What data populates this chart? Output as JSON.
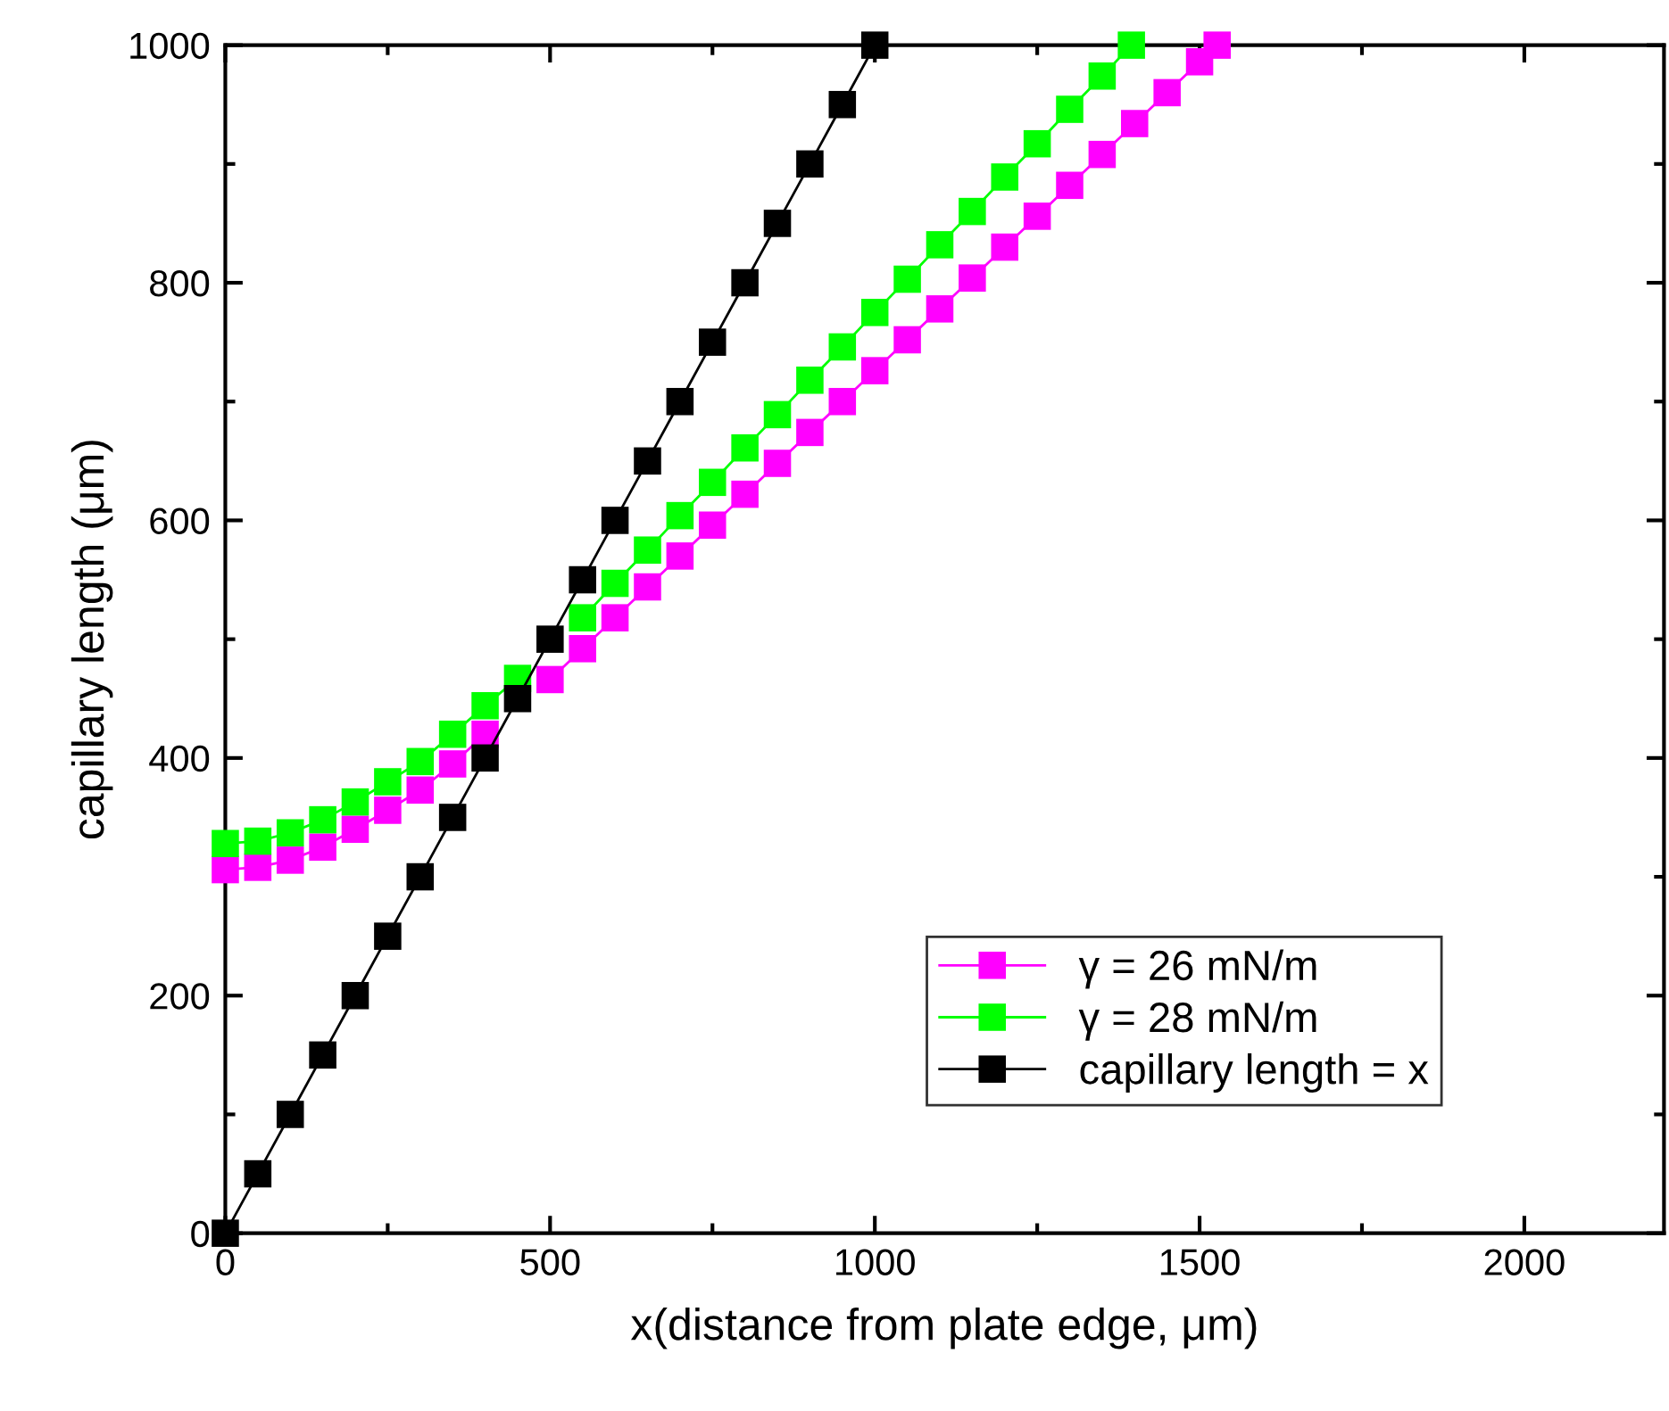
{
  "chart_data": {
    "type": "line",
    "xlabel": "x(distance from plate edge, μm)",
    "ylabel": "capillary length (μm)",
    "xlim": [
      0,
      2215
    ],
    "ylim": [
      0,
      1000
    ],
    "xticks": [
      0,
      500,
      1000,
      1500,
      2000
    ],
    "yticks": [
      0,
      200,
      400,
      600,
      800,
      1000
    ],
    "grid": false,
    "legend": "bottom right",
    "marker": "square",
    "line_style": "solid",
    "series": [
      {
        "name": "γ = 26 mN/m",
        "color": "#ff00ff",
        "x": [
          0,
          50,
          100,
          150,
          200,
          250,
          300,
          350,
          400,
          450,
          500,
          550,
          600,
          650,
          700,
          750,
          800,
          850,
          900,
          950,
          1000,
          1050,
          1100,
          1150,
          1200,
          1250,
          1300,
          1350,
          1400,
          1450,
          1500,
          1527
        ],
        "values": [
          306,
          308,
          314,
          325,
          340,
          356,
          373,
          395,
          420,
          null,
          466,
          492,
          518,
          544,
          570,
          596,
          622,
          648,
          674,
          700,
          726,
          752,
          778,
          804,
          830,
          856,
          882,
          908,
          934,
          960,
          986,
          1000
        ]
      },
      {
        "name": "γ = 28 mN/m",
        "color": "#00ff00",
        "x": [
          0,
          50,
          100,
          150,
          200,
          250,
          300,
          350,
          400,
          450,
          500,
          550,
          600,
          650,
          700,
          750,
          800,
          850,
          900,
          950,
          1000,
          1050,
          1100,
          1150,
          1200,
          1250,
          1300,
          1350,
          1395
        ],
        "values": [
          328,
          330,
          337,
          348,
          363,
          380,
          397,
          420,
          444,
          467,
          null,
          518,
          547,
          575,
          604,
          632,
          661,
          689,
          718,
          746,
          775,
          803,
          832,
          860,
          889,
          917,
          946,
          974,
          1000
        ]
      },
      {
        "name": "capillary length = x",
        "color": "#000000",
        "x": [
          0,
          50,
          100,
          150,
          200,
          250,
          300,
          350,
          400,
          450,
          500,
          550,
          600,
          650,
          700,
          750,
          800,
          850,
          900,
          950,
          1000
        ],
        "values": [
          0,
          50,
          100,
          150,
          200,
          250,
          300,
          350,
          400,
          450,
          500,
          550,
          600,
          650,
          700,
          750,
          800,
          850,
          900,
          950,
          1000
        ]
      }
    ]
  }
}
